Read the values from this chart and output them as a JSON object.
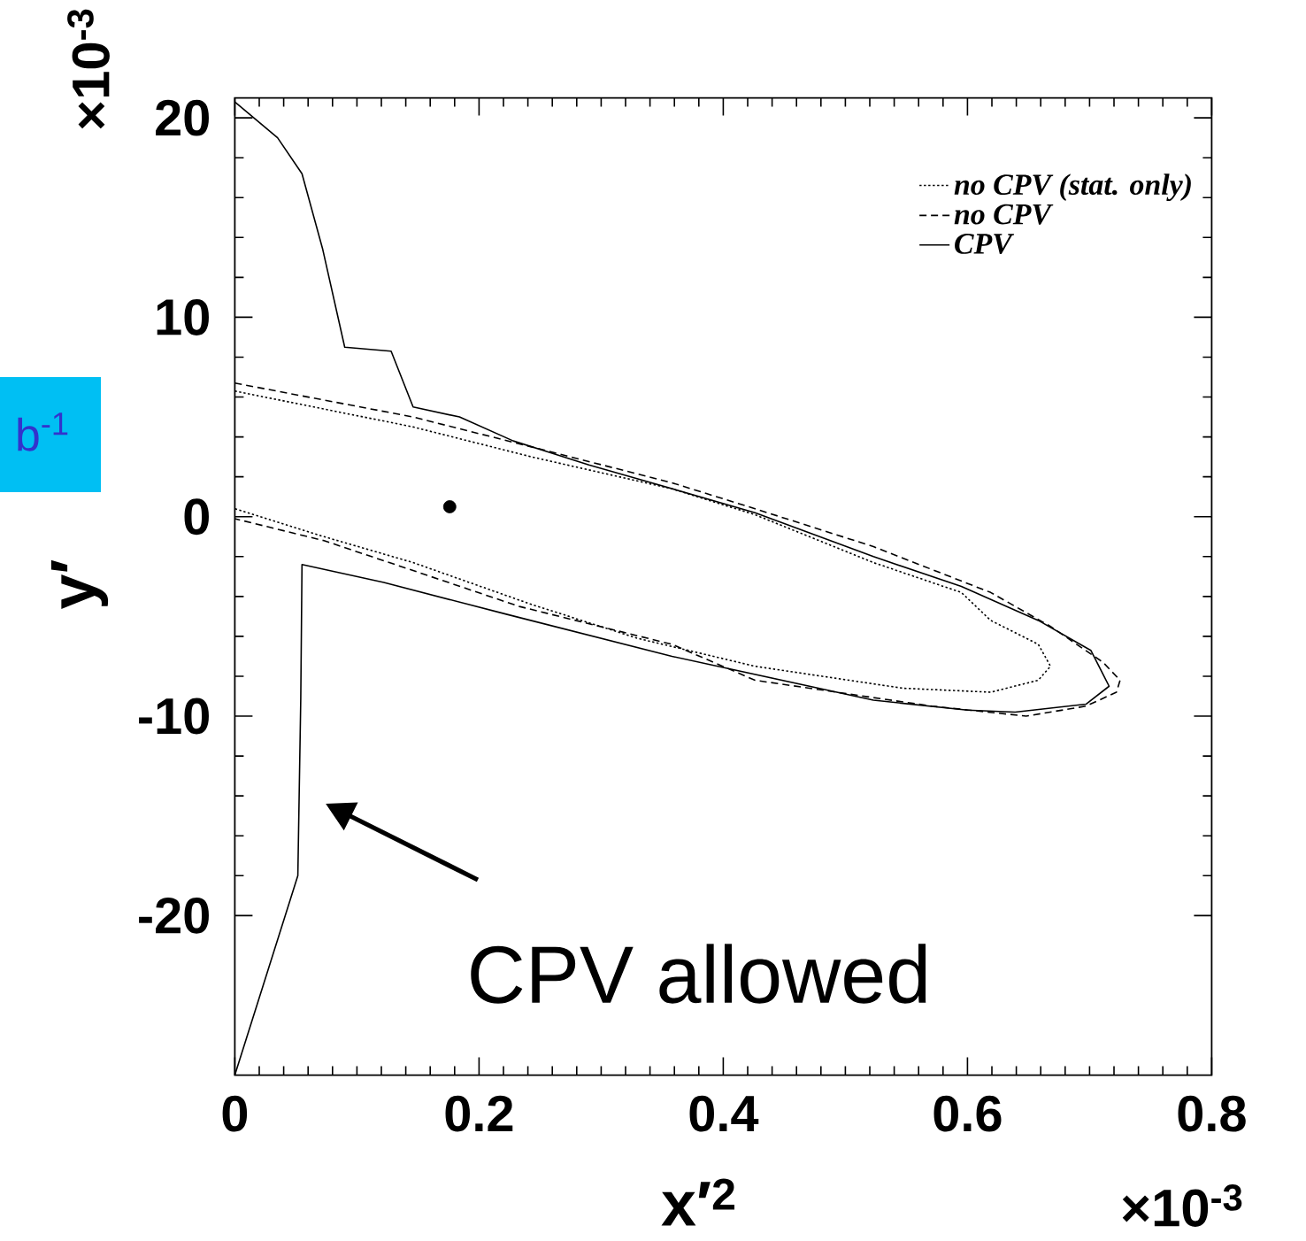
{
  "chart_data": {
    "type": "line",
    "xlabel": "x′$^{2}$",
    "ylabel": "y′",
    "xlim": [
      0,
      0.8
    ],
    "ylim": [
      -28,
      21
    ],
    "xticks": [
      0,
      0.2,
      0.4,
      0.6,
      0.8
    ],
    "yticks": [
      -20,
      -10,
      0,
      10,
      20
    ],
    "legend": "top right",
    "series": [
      {
        "name": "no CPV (stat. only)",
        "color": "#000000",
        "line_style": "dotted",
        "x": [
          0,
          0.146,
          0.243,
          0.358,
          0.426,
          0.523,
          0.595,
          0.619,
          0.658,
          0.668,
          0.658,
          0.619,
          0.547,
          0.426,
          0.33,
          0.243,
          0.146,
          0.073,
          0
        ],
        "values": [
          6.3,
          4.5,
          3.0,
          1.4,
          0.1,
          -2.3,
          -3.8,
          -5.2,
          -6.4,
          -7.5,
          -8.2,
          -8.8,
          -8.6,
          -7.5,
          -6.1,
          -4.4,
          -2.3,
          -1.0,
          0.4
        ]
      },
      {
        "name": "no CPV",
        "color": "#000000",
        "line_style": "dashed",
        "x": [
          0,
          0.146,
          0.243,
          0.358,
          0.426,
          0.523,
          0.619,
          0.668,
          0.711,
          0.725,
          0.722,
          0.697,
          0.648,
          0.571,
          0.426,
          0.358,
          0.233,
          0.146,
          0.073,
          0
        ],
        "values": [
          6.7,
          5.0,
          3.5,
          1.7,
          0.4,
          -1.5,
          -3.8,
          -5.5,
          -7.3,
          -8.2,
          -8.8,
          -9.5,
          -10.0,
          -9.5,
          -8.2,
          -6.4,
          -4.5,
          -2.7,
          -1.2,
          -0.1
        ]
      },
      {
        "name": "CPV",
        "color": "#000000",
        "line_style": "solid",
        "x": [
          0,
          0.035,
          0.055,
          0.072,
          0.09,
          0.128,
          0.146,
          0.184,
          0.228,
          0.29,
          0.33,
          0.426,
          0.523,
          0.595,
          0.658,
          0.701,
          0.716,
          0.697,
          0.639,
          0.6,
          0.523,
          0.358,
          0.223,
          0.122,
          0.055,
          0.054,
          0.0516,
          0
        ],
        "values": [
          20.8,
          19.0,
          17.2,
          13.4,
          8.5,
          8.3,
          5.5,
          5.0,
          3.8,
          2.6,
          1.9,
          0.2,
          -2.0,
          -3.5,
          -5.2,
          -6.7,
          -8.5,
          -9.4,
          -9.8,
          -9.7,
          -9.2,
          -7.0,
          -4.9,
          -3.3,
          -2.4,
          -9.1,
          -18.0,
          -28
        ]
      },
      {
        "type": "scatter",
        "color": "#000000",
        "x": [
          0.176
        ],
        "values": [
          0.5
        ]
      }
    ],
    "annotations": [
      "×10$^{-3}$",
      "×10$^{-3}$",
      "b$^{-1}$",
      "CPV allowed"
    ]
  }
}
